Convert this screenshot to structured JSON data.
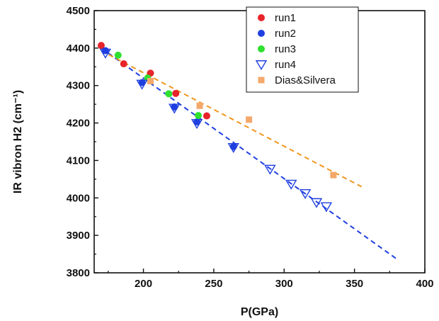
{
  "chart_data": {
    "type": "scatter",
    "xlabel": "P(GPa)",
    "ylabel": "IR vibron H2 (cm⁻¹)",
    "xlim": [
      165,
      400
    ],
    "ylim": [
      3800,
      4500
    ],
    "xticks": [
      200,
      250,
      300,
      350,
      400
    ],
    "yticks": [
      3800,
      3900,
      4000,
      4100,
      4200,
      4300,
      4400,
      4500
    ],
    "legend_position": "top-right",
    "series": [
      {
        "name": "run1",
        "marker": "filled-circle",
        "color": "#e8232a",
        "x": [
          170,
          186,
          205,
          223,
          245
        ],
        "y": [
          4407,
          4358,
          4333,
          4279,
          4219
        ]
      },
      {
        "name": "run2",
        "marker": "filled-circle",
        "color": "#1f3fe0",
        "x": [
          173,
          199,
          222,
          238,
          264
        ],
        "y": [
          4393,
          4308,
          4243,
          4203,
          4137
        ]
      },
      {
        "name": "run3",
        "marker": "filled-circle",
        "color": "#2fe02f",
        "x": [
          182,
          203,
          218,
          239
        ],
        "y": [
          4381,
          4320,
          4278,
          4220
        ]
      },
      {
        "name": "run4",
        "marker": "open-triangle-down",
        "color": "#1f3fe0",
        "x": [
          173,
          199,
          222,
          238,
          264,
          290,
          305,
          315,
          323,
          330
        ],
        "y": [
          4387,
          4304,
          4240,
          4199,
          4135,
          4077,
          4037,
          4012,
          3988,
          3977
        ]
      },
      {
        "name": "Dias&Silvera",
        "marker": "filled-square",
        "color": "#f4a86b",
        "x": [
          205,
          240,
          275,
          335
        ],
        "y": [
          4312,
          4246,
          4209,
          4061
        ]
      }
    ],
    "fit_lines": [
      {
        "color": "#1f3fe0",
        "x": [
          170,
          380
        ],
        "y": [
          4400,
          3837
        ]
      },
      {
        "color": "#f0961f",
        "x": [
          170,
          355
        ],
        "y": [
          4393,
          4030
        ]
      }
    ]
  }
}
